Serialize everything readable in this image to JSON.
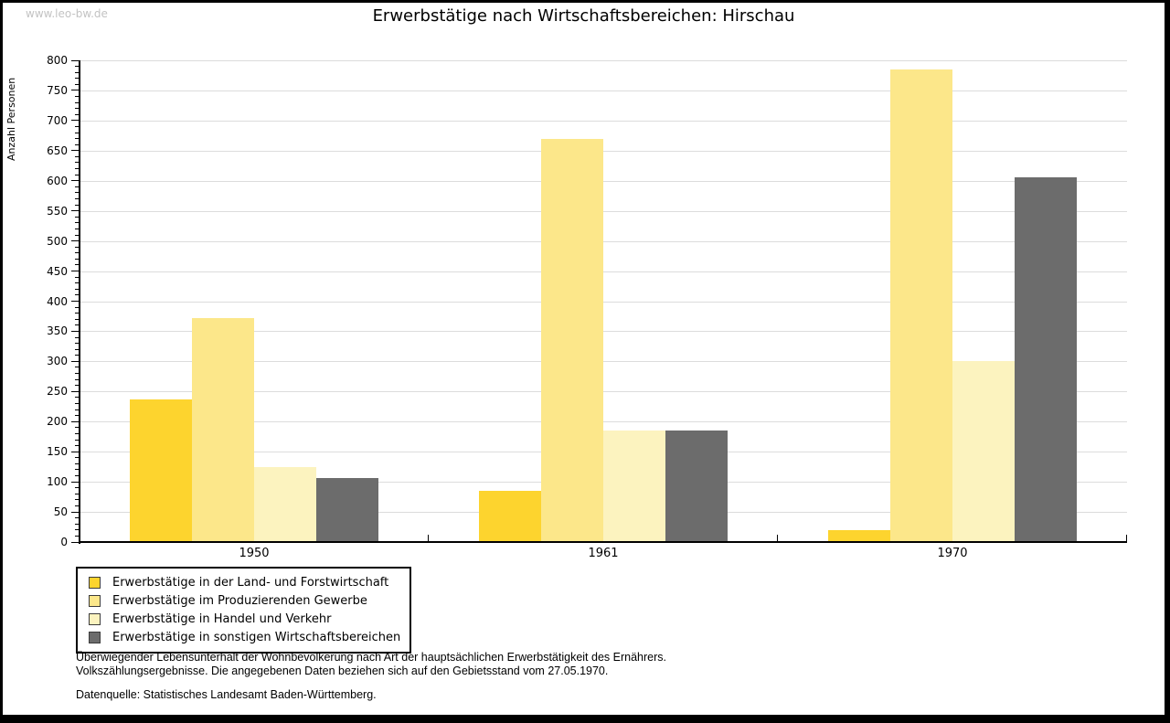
{
  "page": {
    "watermark": "www.leo-bw.de"
  },
  "chart_data": {
    "type": "bar",
    "title": "Erwerbstätige nach Wirtschaftsbereichen: Hirschau",
    "xlabel": "",
    "ylabel": "Anzahl Personen",
    "categories": [
      "1950",
      "1961",
      "1970"
    ],
    "series": [
      {
        "name": "Erwerbstätige in der Land- und Forstwirtschaft",
        "color": "#fdd42e",
        "values": [
          237,
          85,
          20
        ]
      },
      {
        "name": "Erwerbstätige im Produzierenden Gewerbe",
        "color": "#fce78a",
        "values": [
          372,
          670,
          785
        ]
      },
      {
        "name": "Erwerbstätige in Handel und Verkehr",
        "color": "#fcf3bf",
        "values": [
          125,
          185,
          300
        ]
      },
      {
        "name": "Erwerbstätige in sonstigen Wirtschaftsbereichen",
        "color": "#6c6c6c",
        "values": [
          106,
          185,
          605
        ]
      }
    ],
    "ylim": [
      0,
      800
    ],
    "ytick_step": 50,
    "ytick_minor_step": 10,
    "grid": true,
    "legend_position": "bottom-left",
    "colors": {
      "gridline": "#dcdcdc",
      "axis": "#000000"
    }
  },
  "footer": {
    "line1": "Überwiegender Lebensunterhalt der Wohnbevölkerung nach Art der hauptsächlichen Erwerbstätigkeit des Ernährers.",
    "line2": "Volkszählungsergebnisse. Die angegebenen Daten beziehen sich auf den Gebietsstand vom 27.05.1970.",
    "source": "Datenquelle: Statistisches Landesamt Baden-Württemberg."
  }
}
